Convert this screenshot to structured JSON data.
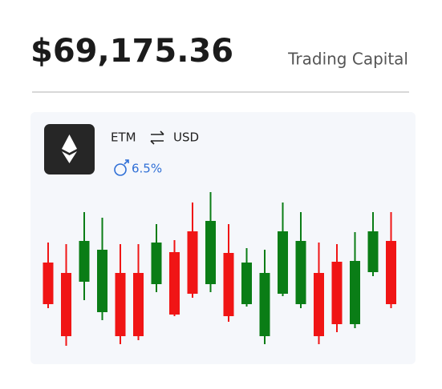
{
  "header": {
    "price": "$69,175.36",
    "label": "Trading Capital"
  },
  "card": {
    "base": "ETM",
    "quote": "USD",
    "change": "6.5%"
  },
  "chart_data": {
    "type": "candlestick",
    "ylim": [
      0,
      100
    ],
    "up_color": "#0a7d16",
    "down_color": "#f01515",
    "open": [
      56,
      49.5,
      44,
      25,
      49.5,
      49.5,
      42.5,
      62.5,
      75.5,
      42.5,
      62,
      30,
      10,
      36.5,
      30,
      49.5,
      56.5,
      17.5,
      50,
      69.5
    ],
    "high": [
      68.5,
      67.5,
      87.5,
      84,
      67.5,
      67.5,
      80,
      70,
      93.5,
      100,
      80,
      65,
      64,
      93.5,
      87.5,
      68.5,
      67.5,
      75,
      87.5,
      87.5
    ],
    "low": [
      27.5,
      4,
      32.5,
      20,
      5,
      7.5,
      37.5,
      22.5,
      34,
      37.5,
      19,
      28.5,
      5,
      35,
      27.5,
      5,
      12.5,
      15,
      47.5,
      27.5
    ],
    "close": [
      30,
      10,
      69.5,
      64,
      10,
      10,
      68.5,
      23.5,
      36.5,
      82,
      22.5,
      56,
      49.5,
      75.5,
      69.5,
      10,
      17.5,
      57,
      75.5,
      30
    ]
  }
}
